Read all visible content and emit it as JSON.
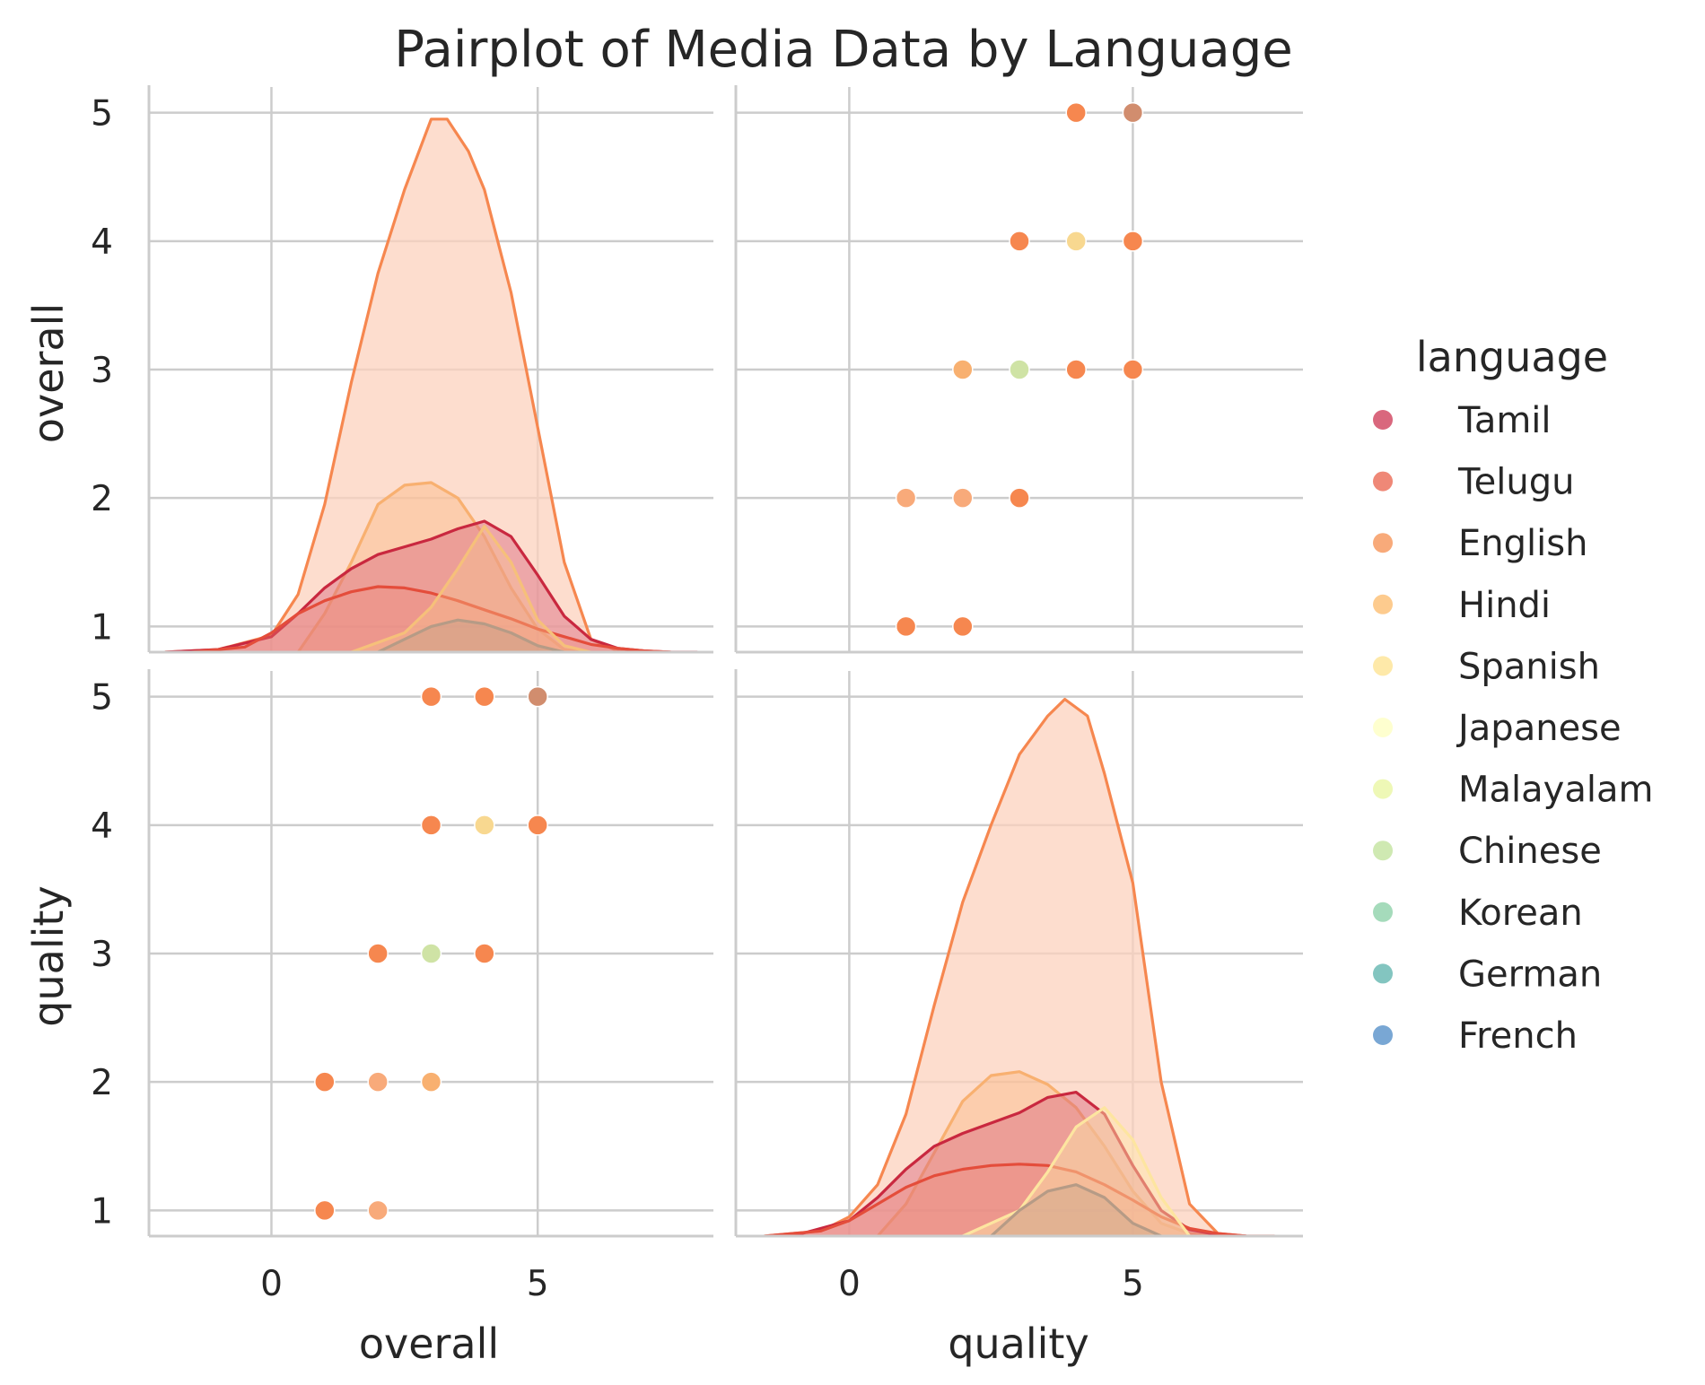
{
  "chart_data": {
    "type": "pairplot",
    "title": "Pairplot of Media Data by Language",
    "variables": [
      "overall",
      "quality"
    ],
    "diag_kind": "kde",
    "offdiag_kind": "scatter",
    "grid": true,
    "legend": {
      "title": "language",
      "placement": "right",
      "entries": [
        {
          "name": "Tamil",
          "color": "#d9677d"
        },
        {
          "name": "Telugu",
          "color": "#ef8877"
        },
        {
          "name": "English",
          "color": "#f8aa7a"
        },
        {
          "name": "Hindi",
          "color": "#fdcb8e"
        },
        {
          "name": "Spanish",
          "color": "#fee9a9"
        },
        {
          "name": "Japanese",
          "color": "#feffcf"
        },
        {
          "name": "Malayalam",
          "color": "#eef8b6"
        },
        {
          "name": "Chinese",
          "color": "#cfe9b2"
        },
        {
          "name": "Korean",
          "color": "#a5dbbb"
        },
        {
          "name": "German",
          "color": "#83c5c0"
        },
        {
          "name": "French",
          "color": "#79a7d4"
        }
      ]
    },
    "axes": {
      "overall": {
        "label": "overall",
        "xlim": [
          -2.3,
          8.3
        ],
        "xticks": [
          0,
          5
        ],
        "ylim": [
          0.8,
          5.2
        ],
        "yticks": [
          1,
          2,
          3,
          4,
          5
        ]
      },
      "quality": {
        "label": "quality",
        "xlim": [
          -2.0,
          8.0
        ],
        "xticks": [
          0,
          5
        ],
        "ylim": [
          0.8,
          5.2
        ],
        "yticks": [
          1,
          2,
          3,
          4,
          5
        ]
      }
    },
    "scatter_quality_vs_overall": [
      {
        "overall": 1,
        "quality": 1,
        "color": "#f6874f"
      },
      {
        "overall": 2,
        "quality": 1,
        "color": "#f8aa7a"
      },
      {
        "overall": 1,
        "quality": 2,
        "color": "#f6874f"
      },
      {
        "overall": 2,
        "quality": 2,
        "color": "#f8aa7a"
      },
      {
        "overall": 3,
        "quality": 2,
        "color": "#f8b070"
      },
      {
        "overall": 2,
        "quality": 3,
        "color": "#f6874f"
      },
      {
        "overall": 3,
        "quality": 3,
        "color": "#cfe3a5"
      },
      {
        "overall": 4,
        "quality": 3,
        "color": "#f6874f"
      },
      {
        "overall": 3,
        "quality": 4,
        "color": "#f6874f"
      },
      {
        "overall": 4,
        "quality": 4,
        "color": "#f8d890"
      },
      {
        "overall": 5,
        "quality": 4,
        "color": "#f6874f"
      },
      {
        "overall": 3,
        "quality": 5,
        "color": "#f6874f"
      },
      {
        "overall": 4,
        "quality": 5,
        "color": "#f6874f"
      },
      {
        "overall": 5,
        "quality": 5,
        "color": "#d18d6e"
      }
    ],
    "scatter_overall_vs_quality": [
      {
        "quality": 1,
        "overall": 1,
        "color": "#f6874f"
      },
      {
        "quality": 2,
        "overall": 1,
        "color": "#f6874f"
      },
      {
        "quality": 1,
        "overall": 2,
        "color": "#f8aa7a"
      },
      {
        "quality": 2,
        "overall": 2,
        "color": "#f8aa7a"
      },
      {
        "quality": 3,
        "overall": 2,
        "color": "#f6874f"
      },
      {
        "quality": 2,
        "overall": 3,
        "color": "#f8b070"
      },
      {
        "quality": 3,
        "overall": 3,
        "color": "#cfe3a5"
      },
      {
        "quality": 4,
        "overall": 3,
        "color": "#f6874f"
      },
      {
        "quality": 5,
        "overall": 3,
        "color": "#f6874f"
      },
      {
        "quality": 3,
        "overall": 4,
        "color": "#f6874f"
      },
      {
        "quality": 4,
        "overall": 4,
        "color": "#f8d890"
      },
      {
        "quality": 5,
        "overall": 4,
        "color": "#f6874f"
      },
      {
        "quality": 4,
        "overall": 5,
        "color": "#f6874f"
      },
      {
        "quality": 5,
        "overall": 5,
        "color": "#d18d6e"
      }
    ],
    "kde_overall": [
      {
        "x": [
          -2.0,
          -1.0,
          0.0,
          0.5,
          1.0,
          1.5,
          2.0,
          2.5,
          3.0,
          3.3,
          3.7,
          4.0,
          4.5,
          5.0,
          5.5,
          6.0,
          6.5,
          7.0,
          7.5
        ],
        "y": [
          0.8,
          0.82,
          0.93,
          1.25,
          1.95,
          2.9,
          3.75,
          4.4,
          4.95,
          4.95,
          4.7,
          4.4,
          3.6,
          2.55,
          1.5,
          0.9,
          0.81,
          0.8,
          0.8
        ],
        "fill": "#fcd2bd",
        "stroke": "#f6874f",
        "fill_opacity": 0.75
      },
      {
        "x": [
          0.5,
          1.0,
          1.5,
          2.0,
          2.5,
          3.0,
          3.5,
          4.0,
          4.5,
          5.0,
          5.5,
          6.0,
          6.5
        ],
        "y": [
          0.8,
          1.1,
          1.5,
          1.95,
          2.1,
          2.12,
          2.0,
          1.7,
          1.3,
          0.98,
          0.82,
          0.8,
          0.8
        ],
        "fill": "#f8b070",
        "stroke": "#f8b070",
        "fill_opacity": 0.35
      },
      {
        "x": [
          -2.0,
          -1.0,
          0.0,
          0.5,
          1.0,
          1.5,
          2.0,
          2.5,
          3.0,
          3.5,
          4.0,
          4.5,
          5.0,
          5.5,
          6.0,
          6.5,
          7.0,
          7.5,
          8.0
        ],
        "y": [
          0.8,
          0.82,
          0.92,
          1.1,
          1.3,
          1.45,
          1.56,
          1.62,
          1.68,
          1.76,
          1.82,
          1.7,
          1.4,
          1.08,
          0.9,
          0.83,
          0.81,
          0.8,
          0.8
        ],
        "fill": "#d9677d",
        "stroke": "#c9283f",
        "fill_opacity": 0.45
      },
      {
        "x": [
          -1.5,
          -0.5,
          0.0,
          0.5,
          1.0,
          1.5,
          2.0,
          2.5,
          3.0,
          3.5,
          4.0,
          4.5,
          5.0,
          5.5,
          6.0,
          6.5,
          7.0,
          7.5
        ],
        "y": [
          0.8,
          0.84,
          0.95,
          1.1,
          1.2,
          1.27,
          1.31,
          1.3,
          1.26,
          1.2,
          1.13,
          1.06,
          0.98,
          0.92,
          0.86,
          0.83,
          0.81,
          0.8
        ],
        "fill": "#ef8877",
        "stroke": "#e44d3b",
        "fill_opacity": 0.3
      },
      {
        "x": [
          1.5,
          2.5,
          3.0,
          3.5,
          4.0,
          4.5,
          5.0,
          5.5,
          6.0
        ],
        "y": [
          0.8,
          0.95,
          1.15,
          1.45,
          1.78,
          1.5,
          1.05,
          0.85,
          0.8
        ],
        "fill": "#fdcb8e",
        "stroke": "#f6c07a",
        "fill_opacity": 0.35
      },
      {
        "x": [
          2.0,
          2.5,
          3.0,
          3.5,
          4.0,
          4.5,
          5.0,
          5.5
        ],
        "y": [
          0.8,
          0.9,
          1.0,
          1.05,
          1.02,
          0.95,
          0.85,
          0.8
        ],
        "fill": "#b69b86",
        "stroke": "#b69b86",
        "fill_opacity": 0.35
      }
    ],
    "kde_quality": [
      {
        "x": [
          -1.5,
          -0.5,
          0.0,
          0.5,
          1.0,
          1.5,
          2.0,
          2.5,
          3.0,
          3.5,
          3.8,
          4.2,
          4.5,
          5.0,
          5.5,
          6.0,
          6.5,
          7.0
        ],
        "y": [
          0.8,
          0.84,
          0.95,
          1.2,
          1.75,
          2.6,
          3.4,
          4.0,
          4.55,
          4.85,
          4.98,
          4.85,
          4.4,
          3.55,
          2.0,
          1.05,
          0.82,
          0.8
        ],
        "fill": "#fcd2bd",
        "stroke": "#f6874f",
        "fill_opacity": 0.75
      },
      {
        "x": [
          0.5,
          1.0,
          1.5,
          2.0,
          2.5,
          3.0,
          3.5,
          4.0,
          4.5,
          5.0,
          5.5,
          6.0,
          6.5
        ],
        "y": [
          0.8,
          1.05,
          1.45,
          1.85,
          2.05,
          2.08,
          1.98,
          1.8,
          1.5,
          1.15,
          0.9,
          0.82,
          0.8
        ],
        "fill": "#f8b070",
        "stroke": "#f8b070",
        "fill_opacity": 0.35
      },
      {
        "x": [
          -1.0,
          0.0,
          0.5,
          1.0,
          1.5,
          2.0,
          2.5,
          3.0,
          3.5,
          4.0,
          4.5,
          5.0,
          5.5,
          6.0,
          6.5,
          7.0
        ],
        "y": [
          0.8,
          0.92,
          1.1,
          1.32,
          1.5,
          1.6,
          1.68,
          1.76,
          1.88,
          1.92,
          1.75,
          1.35,
          1.0,
          0.85,
          0.81,
          0.8
        ],
        "fill": "#d9677d",
        "stroke": "#c9283f",
        "fill_opacity": 0.45
      },
      {
        "x": [
          -1.5,
          -0.5,
          0.0,
          0.5,
          1.0,
          1.5,
          2.0,
          2.5,
          3.0,
          3.5,
          4.0,
          4.5,
          5.0,
          5.5,
          6.0,
          6.5,
          7.0,
          7.5
        ],
        "y": [
          0.8,
          0.84,
          0.92,
          1.05,
          1.18,
          1.27,
          1.32,
          1.35,
          1.36,
          1.35,
          1.3,
          1.2,
          1.08,
          0.95,
          0.86,
          0.82,
          0.8,
          0.8
        ],
        "fill": "#ef8877",
        "stroke": "#e44d3b",
        "fill_opacity": 0.3
      },
      {
        "x": [
          2.0,
          3.0,
          3.5,
          4.0,
          4.5,
          5.0,
          5.5,
          6.0
        ],
        "y": [
          0.8,
          1.0,
          1.3,
          1.65,
          1.8,
          1.55,
          1.1,
          0.8
        ],
        "fill": "#fee9a9",
        "stroke": "#fde5a0",
        "fill_opacity": 0.45
      },
      {
        "x": [
          2.5,
          3.0,
          3.5,
          4.0,
          4.5,
          5.0,
          5.5
        ],
        "y": [
          0.8,
          1.0,
          1.15,
          1.2,
          1.1,
          0.9,
          0.8
        ],
        "fill": "#b69b86",
        "stroke": "#b69b86",
        "fill_opacity": 0.3
      }
    ]
  }
}
